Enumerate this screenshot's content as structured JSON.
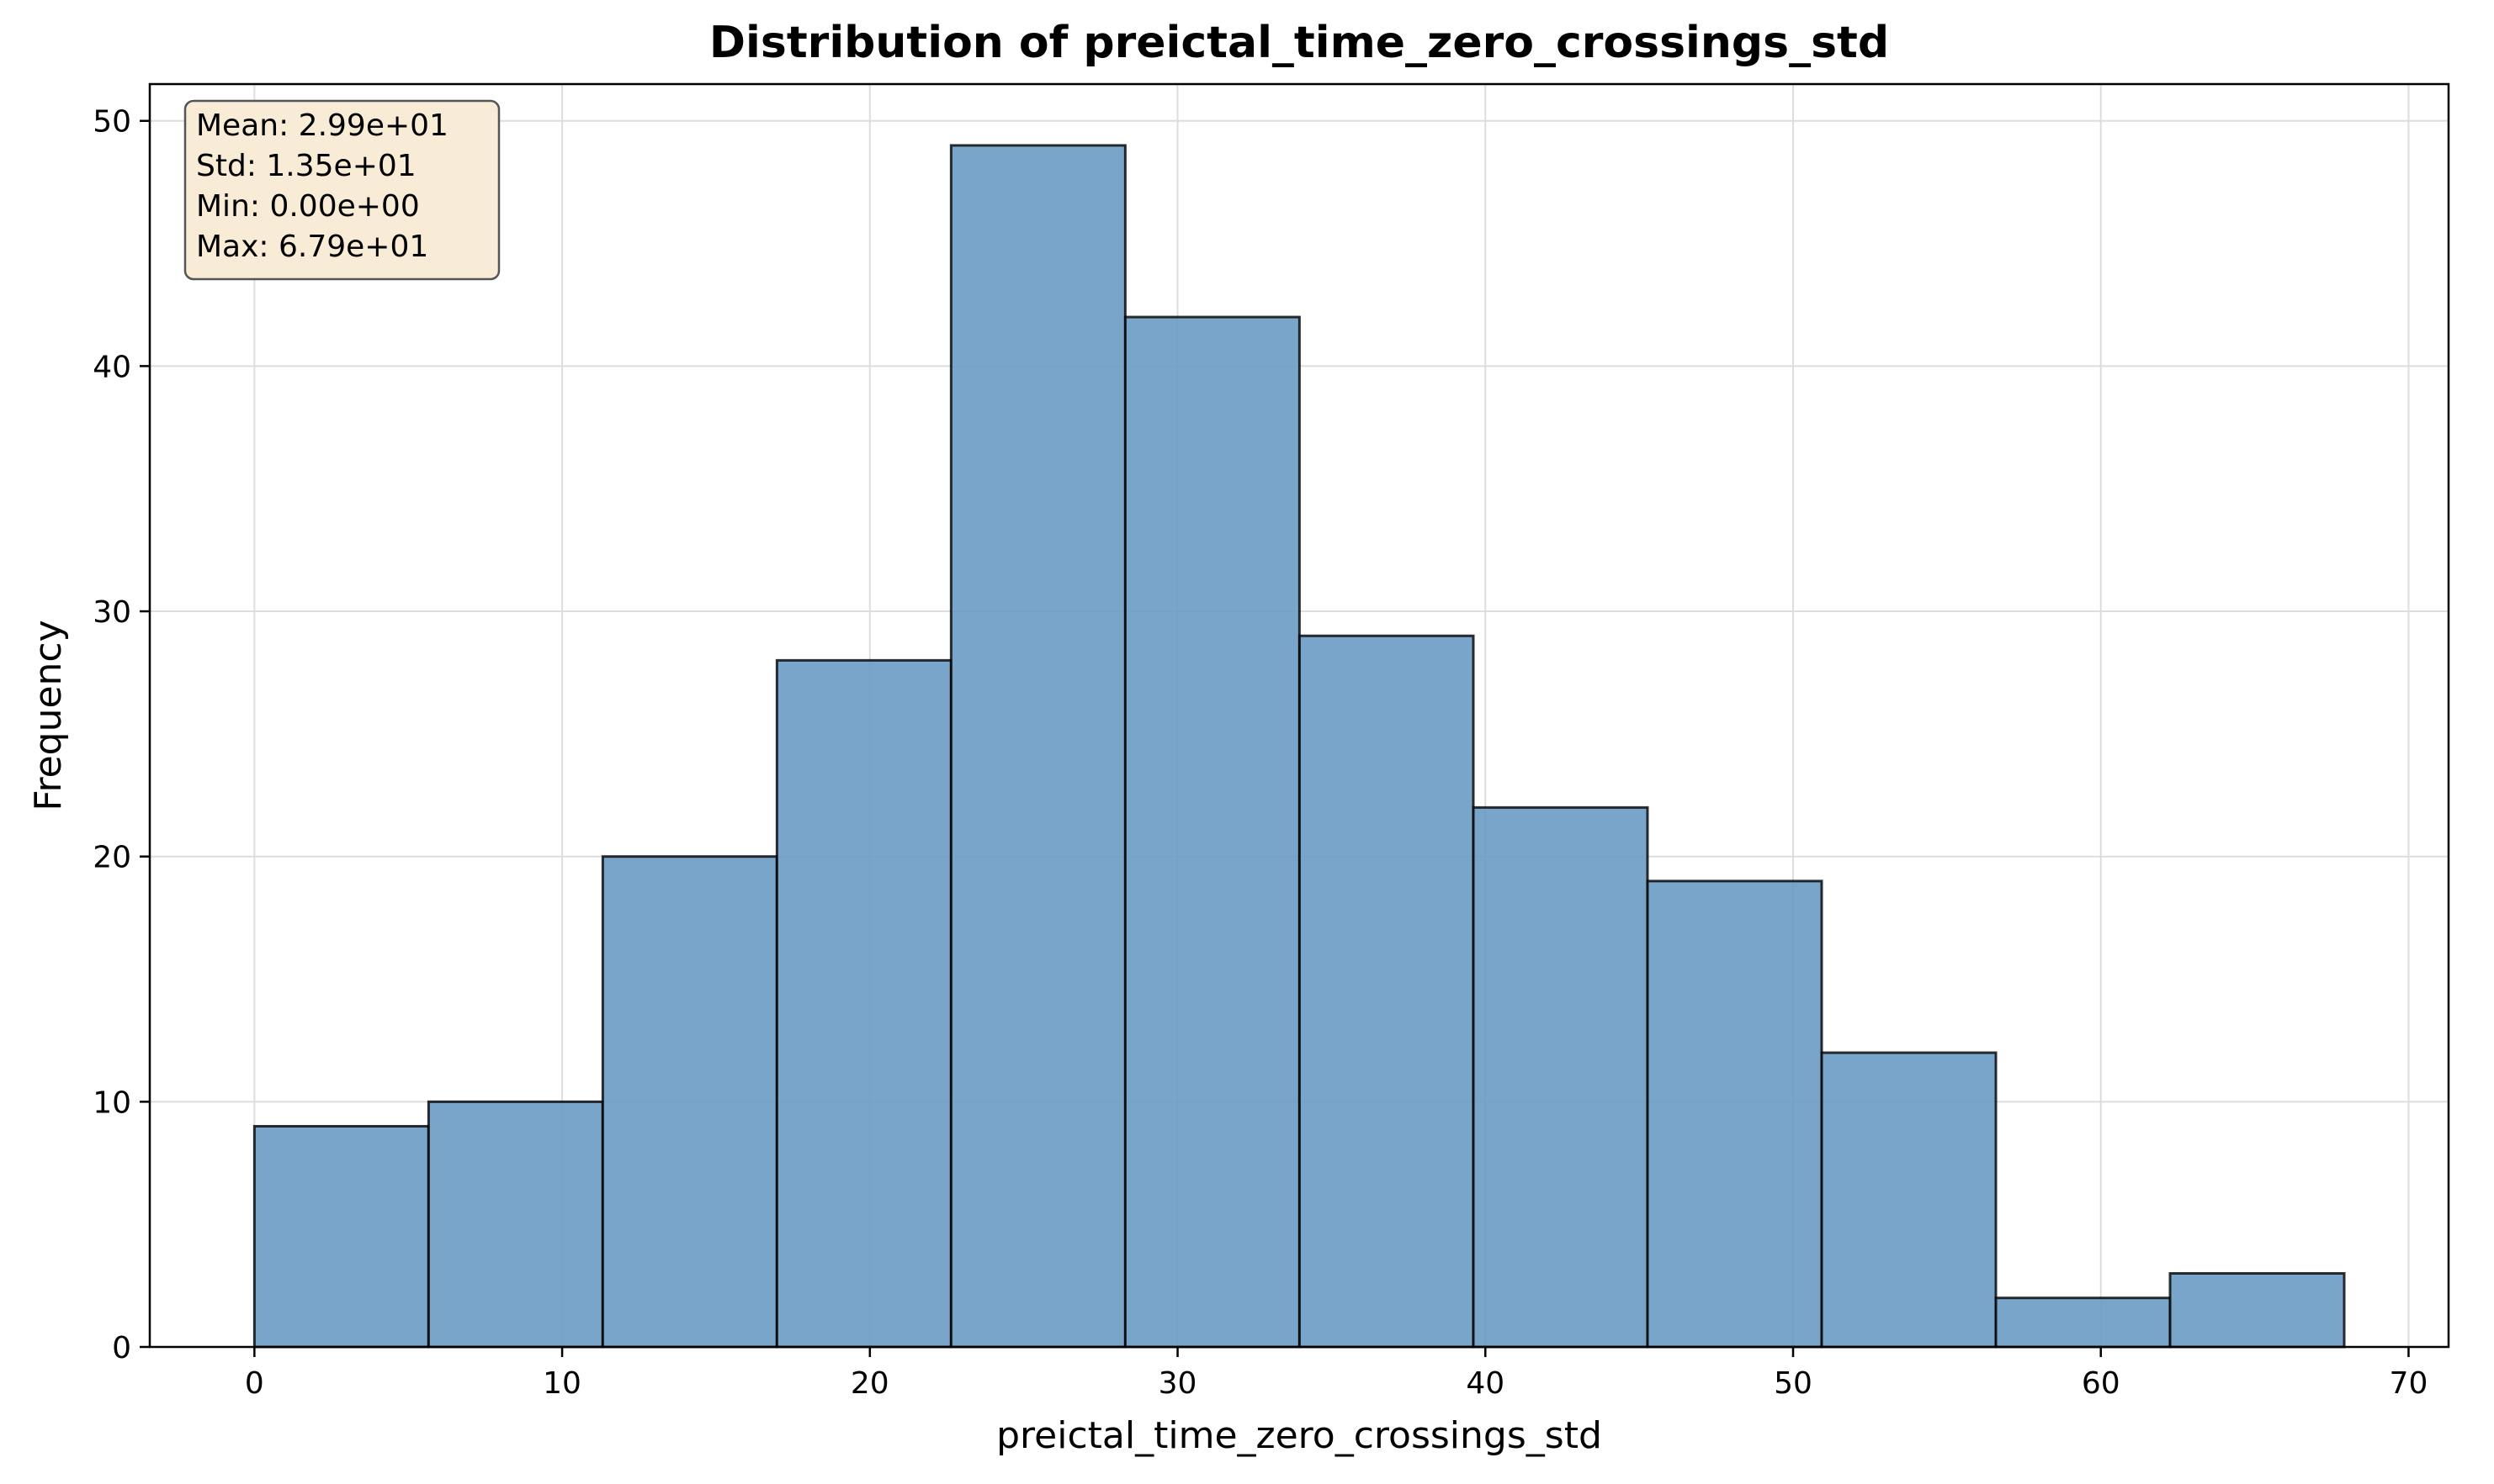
{
  "chart_data": {
    "type": "bar",
    "title": "Distribution of preictal_time_zero_crossings_std",
    "xlabel": "preictal_time_zero_crossings_std",
    "ylabel": "Frequency",
    "bin_edges": [
      0,
      5.66,
      11.32,
      16.98,
      22.64,
      28.3,
      33.96,
      39.61,
      45.27,
      50.93,
      56.59,
      62.25,
      67.91
    ],
    "values": [
      9,
      10,
      20,
      28,
      49,
      42,
      29,
      22,
      19,
      12,
      2,
      3
    ],
    "xlim": [
      -3.4,
      71.3
    ],
    "ylim": [
      0,
      51.5
    ],
    "xticks": [
      0,
      10,
      20,
      30,
      40,
      50,
      60,
      70
    ],
    "yticks": [
      0,
      10,
      20,
      30,
      40,
      50
    ],
    "grid": true,
    "bar_color": "#6c9bc4",
    "edge_color": "#000000",
    "stats": [
      "Mean: 2.99e+01",
      "Std: 1.35e+01",
      "Min: 0.00e+00",
      "Max: 6.79e+01"
    ],
    "stats_box_color": "#f8ecd6"
  }
}
